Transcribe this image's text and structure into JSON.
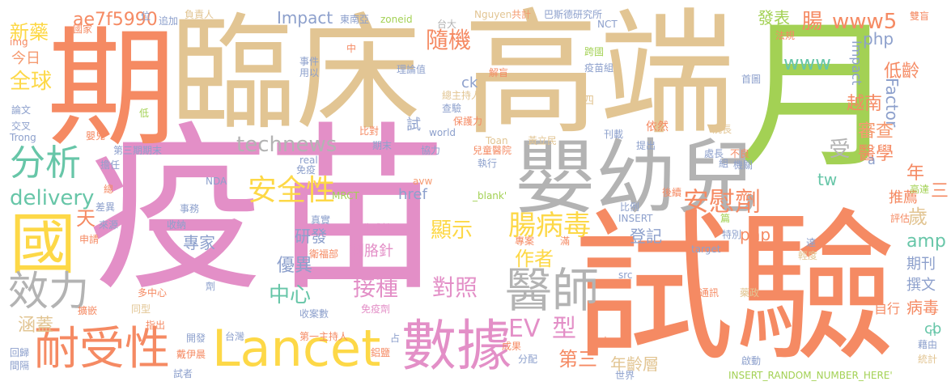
{
  "words": {
    "yimiao": "疫苗",
    "shiyan": "試驗",
    "gaoduan": "高端",
    "yue": "月",
    "qi": "期",
    "linchuang": "臨床",
    "yingyouer": "嬰幼兒",
    "guo": "國",
    "xiaoli": "效力",
    "naishouxing": "耐受性",
    "lancet": "Lancet",
    "shuju": "數據",
    "yishi": "醫師",
    "fenxi": "分析",
    "anquanxing": "安全性",
    "anweiji": "安慰劑",
    "technews": "technews",
    "delivery": "delivery",
    "changbingdu": "腸病毒",
    "jiezhong": "接種",
    "duizhao": "對照",
    "xianshi": "顯示",
    "cijiezhen": "刺胳針",
    "ev": "EV",
    "xing": "型",
    "zuozhe": "作者",
    "yuenan": "越南",
    "shencha": "審查",
    "yixue": "醫學",
    "dilng": "低齡",
    "www5": "www5",
    "www": "www",
    "php1": "php",
    "php2": "php",
    "factor": "Factor",
    "impact": "Impact",
    "hash": "ae7f5990",
    "xinyao": "新藥",
    "quanqiu": "全球",
    "jinri": "今日",
    "suiji": "隨機",
    "chang": "腸",
    "fabiao": "發表",
    "zhongxin": "中心",
    "youyi": "優異",
    "hangai": "涵蓋",
    "zhuanjia": "專家",
    "yanfa": "研發",
    "dengji": "登記",
    "nianlingceng": "年齡層",
    "disan": "第三",
    "amp": "amp",
    "qikan": "期刊",
    "zhuanwen": "撰文",
    "bingdu": "病毒",
    "zixing": "自行",
    "tuijian": "推薦",
    "sui": "歲",
    "nian": "年",
    "san": "三",
    "tian": "天",
    "tw": "tw",
    "href": "href",
    "cb": "cb",
    "n": "n",
    "a": "a",
    "shou": "受",
    "ck": "ck",
    "shi": "試",
    "dongnanya": "東南亞",
    "zoneid": "zoneid",
    "nguyen": "Nguyen",
    "gongji": "共計",
    "basideyanjiusuo": "巴斯德研究所",
    "shuangmang": "雙盲",
    "fagui": "法規",
    "nct": "NCT",
    "taida": "台大",
    "kuaguo": "跨國",
    "yimiaozu": "疫苗組",
    "lilunzhi": "理論值",
    "jieyan": "解盲",
    "shouye": "首圖",
    "zongzhuchiren": "總主持人",
    "chayan": "查驗",
    "baohuli": "保護力",
    "si": "四",
    "biduo": "比對",
    "world": "world",
    "toan": "Toan",
    "huangliming": "黃立民",
    "kandeng": "刊載",
    "yiran": "依然",
    "disanqimo": "第三期期末",
    "qimo": "期末",
    "xieli": "協力",
    "ertongyiyuan": "兒童醫院",
    "tichu": "提出",
    "chuchang": "處長",
    "yuanzhang": "院長",
    "buliang": "不良",
    "jiguan": "機關",
    "zu": "組",
    "guojia": "國家",
    "img": "img",
    "lunwen": "論文",
    "jiaocha": "交叉",
    "trong": "Trong",
    "di": "低",
    "yinger": "嬰兒",
    "danren": "擔任",
    "real": "real",
    "mianyi": "免疫",
    "nda": "NDA",
    "zhixing": "執行",
    "houxu": "後續",
    "gaodu": "高達",
    "pinggu": "評估",
    "pian": "篇",
    "insert": "INSERT",
    "bili": "比例",
    "shiwu": "事務",
    "zong": "總",
    "mrct": "MRCT",
    "avw": "avw",
    "blank": "_blank'",
    "chayi": "差異",
    "laiyuan": "來源",
    "shouna": "收納",
    "zhenshi": "真實",
    "weishengbu": "衛福部",
    "shenqing": "申請",
    "shengchengxing": "生成性",
    "zhuanan": "專案",
    "man": "滿",
    "tebie": "特別",
    "target": "target",
    "src": "src",
    "qingdu": "輕度",
    "da": "達",
    "tongxun": "通訊",
    "yaozheng": "藥政",
    "duozhongxin": "多中心",
    "tongxing": "同型",
    "ji": "劑",
    "mianyiji": "免疫劑",
    "shounashu": "收案數",
    "kuaijiao": "擴嵌",
    "zhichu": "指出",
    "kaifa": "開發",
    "taiwan": "台灣",
    "diyizhuchiren": "第一主持人",
    "zhan": "占",
    "lvyan": "鋁鹽",
    "chengguo": "成果",
    "fenpei": "分配",
    "mo": "末",
    "jiyou": "藉由",
    "tongji": "統計",
    "huigui": "回歸",
    "jiange": "間隔",
    "daiyichen": "戴伊晨",
    "shizhe": "試者",
    "shijie": "世界",
    "qidong": "啟動",
    "insert_random": "INSERT_RANDOM_NUMBER_HERE'",
    "fuzeren": "負責人",
    "zhuijia": "追加",
    "wei": "位",
    "shijian": "事件",
    "yongyi": "用以",
    "zhong": "中"
  },
  "palette": {
    "tan": "#e2c593",
    "salmon": "#f58a63",
    "coral": "#f59a70",
    "lime": "#a3d154",
    "pink": "#e38fc7",
    "gray": "#b3b3b3",
    "yellow": "#fdd847",
    "teal": "#67c6a8",
    "blue": "#8da0cc"
  }
}
